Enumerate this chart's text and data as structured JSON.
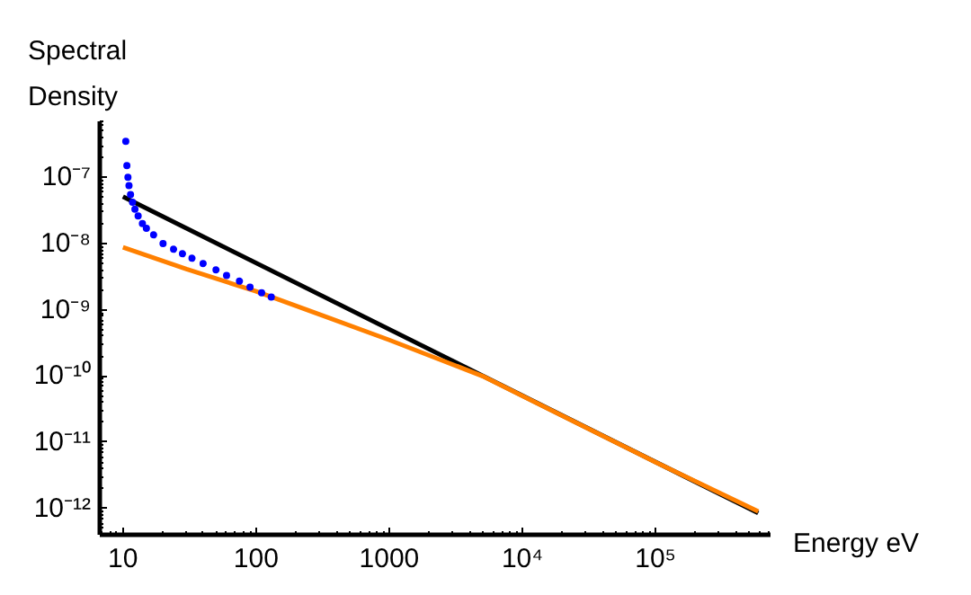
{
  "chart_data": {
    "type": "line",
    "xlabel": "Energy eV",
    "ylabel": "Spectral Density",
    "log": "xy",
    "grid": false,
    "xlim": [
      6.7,
      730000
    ],
    "ylim": [
      4e-13,
      7e-07
    ],
    "xticks": [
      10,
      100,
      1000,
      {
        "value": 10000,
        "label": "10⁴"
      },
      {
        "value": 100000,
        "label": "10⁵"
      }
    ],
    "yticks": [
      {
        "value": 1e-12,
        "label": "10⁻¹²"
      },
      {
        "value": 1e-11,
        "label": "10⁻¹¹"
      },
      {
        "value": 1e-10,
        "label": "10⁻¹⁰"
      },
      {
        "value": 1e-09,
        "label": "10⁻⁹"
      },
      {
        "value": 1e-08,
        "label": "10⁻⁸"
      },
      {
        "value": 1e-07,
        "label": "10⁻⁷"
      }
    ],
    "series": [
      {
        "type": "scatter",
        "marker": "circle",
        "color": "#0000ff",
        "x": [
          10.5,
          10.7,
          10.9,
          11.1,
          11.4,
          11.8,
          12.3,
          13,
          14,
          15,
          17,
          20,
          24,
          28,
          33,
          40,
          50,
          60,
          75,
          90,
          110,
          130
        ],
        "values": [
          3.5e-07,
          1.5e-07,
          1e-07,
          7.5e-08,
          5.5e-08,
          4.2e-08,
          3.3e-08,
          2.6e-08,
          2e-08,
          1.7e-08,
          1.35e-08,
          1e-08,
          8.2e-09,
          7e-09,
          6e-09,
          5e-09,
          4e-09,
          3.3e-09,
          2.7e-09,
          2.2e-09,
          1.8e-09,
          1.55e-09
        ]
      },
      {
        "color": "#000000",
        "x": [
          10,
          590000
        ],
        "values": [
          5.1e-08,
          8.5e-13
        ]
      },
      {
        "color": "#ff8000",
        "x": [
          10,
          30,
          100,
          300,
          1000,
          5000,
          10000,
          100000,
          590000
        ],
        "values": [
          8.8e-09,
          4.1e-09,
          1.9e-09,
          8.5e-10,
          3.5e-10,
          1e-10,
          5e-11,
          5e-12,
          9e-13
        ]
      }
    ]
  }
}
